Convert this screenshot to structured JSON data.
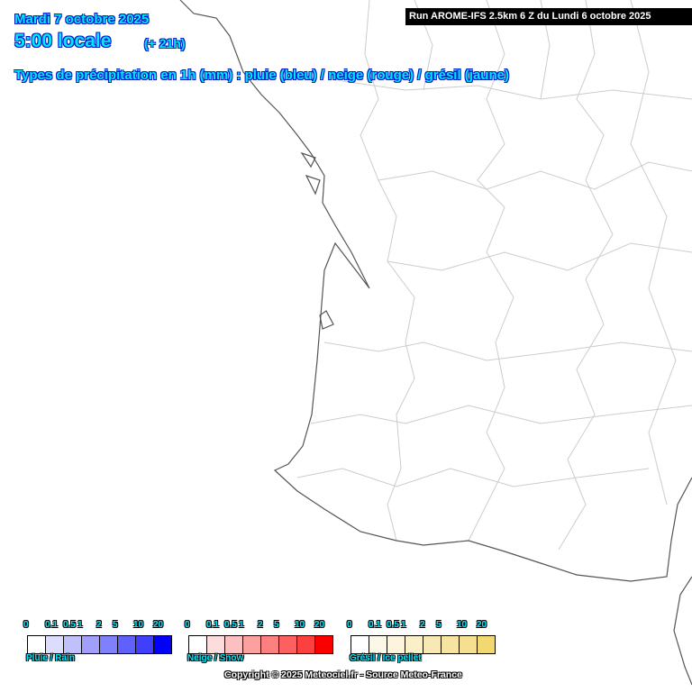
{
  "header": {
    "date": "Mardi 7 octobre 2025",
    "hour": "5:00 locale",
    "offset": "(+ 21h)",
    "subtitle": "Types de précipitation en 1h (mm) : pluie (bleu) / neige (rouge) / grésil (jaune)",
    "run": "Run AROME-IFS 2.5km 6 Z du Lundi 6 octobre 2025"
  },
  "legend": {
    "ticks": [
      "0",
      "0.1",
      "0.5",
      "1",
      "2",
      "5",
      "10",
      "20"
    ],
    "scales": [
      {
        "name": "Pluie / Rain",
        "colors": [
          "#ffffff",
          "#dcdcfc",
          "#c0c0fc",
          "#a0a0fc",
          "#8080fc",
          "#6060fc",
          "#4040fc",
          "#0000fc"
        ]
      },
      {
        "name": "Neige / Snow",
        "colors": [
          "#ffffff",
          "#fcdcdc",
          "#fcc0c0",
          "#fca0a0",
          "#fc8080",
          "#fc6060",
          "#fc4040",
          "#fc0000"
        ]
      },
      {
        "name": "Grésil / Ice pellet",
        "colors": [
          "#ffffff",
          "#fcf8e8",
          "#fcf4dc",
          "#faf0c8",
          "#f8e8b4",
          "#f6e4a0",
          "#f4e090",
          "#f2d870"
        ]
      }
    ]
  },
  "footer": {
    "copyright": "Copyright © 2025 Meteociel.fr - Source Meteo-France"
  },
  "colors": {
    "coast": "#555555",
    "borders": "#c8c8c8",
    "title_text": "#00e8ff",
    "title_outline": "#0018c8"
  }
}
